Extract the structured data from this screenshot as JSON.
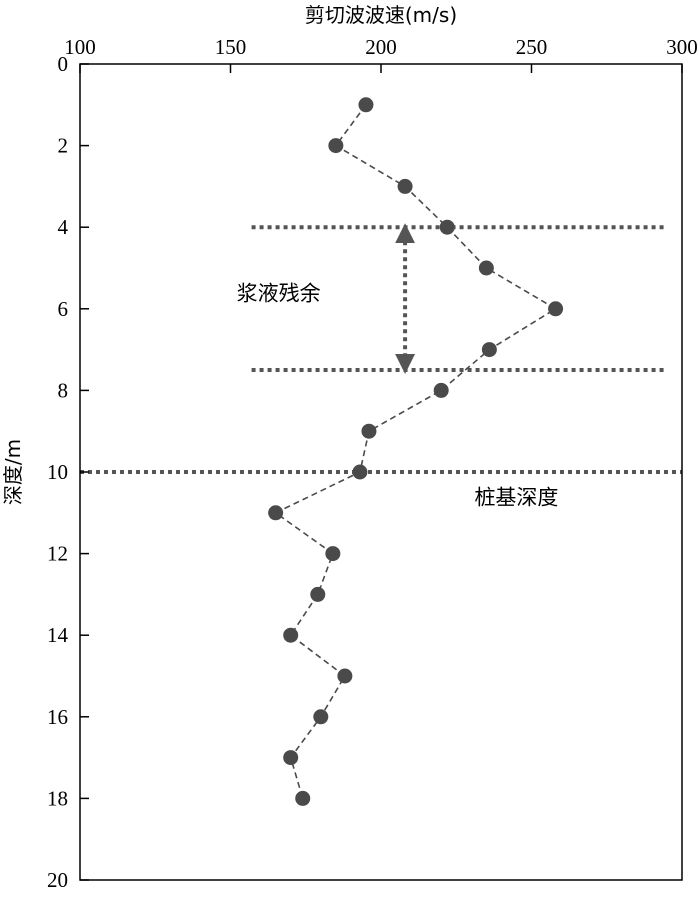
{
  "chart_data": {
    "type": "scatter",
    "title": "",
    "xlabel": "剪切波波速(m/s)",
    "ylabel": "深度/m",
    "x_axis_position": "top",
    "y_axis_inverted": true,
    "xlim": [
      100,
      300
    ],
    "ylim": [
      0,
      20
    ],
    "x_ticks": [
      100,
      150,
      200,
      250,
      300
    ],
    "y_ticks": [
      0,
      2,
      4,
      6,
      8,
      10,
      12,
      14,
      16,
      18,
      20
    ],
    "x_tick_labels": [
      "100",
      "150",
      "200",
      "250",
      "300"
    ],
    "y_tick_labels": [
      "0",
      "2",
      "4",
      "6",
      "8",
      "10",
      "12",
      "14",
      "16",
      "18",
      "20"
    ],
    "grid": false,
    "series": [
      {
        "style": "dashed line with filled circle markers",
        "color": "#4a4a4a",
        "points": [
          {
            "x": 195,
            "y": 1
          },
          {
            "x": 185,
            "y": 2
          },
          {
            "x": 208,
            "y": 3
          },
          {
            "x": 222,
            "y": 4
          },
          {
            "x": 235,
            "y": 5
          },
          {
            "x": 258,
            "y": 6
          },
          {
            "x": 236,
            "y": 7
          },
          {
            "x": 220,
            "y": 8
          },
          {
            "x": 196,
            "y": 9
          },
          {
            "x": 193,
            "y": 10
          },
          {
            "x": 165,
            "y": 11
          },
          {
            "x": 184,
            "y": 12
          },
          {
            "x": 179,
            "y": 13
          },
          {
            "x": 170,
            "y": 14
          },
          {
            "x": 188,
            "y": 15
          },
          {
            "x": 180,
            "y": 16
          },
          {
            "x": 170,
            "y": 17
          },
          {
            "x": 174,
            "y": 18
          }
        ]
      }
    ],
    "reference_lines": [
      {
        "type": "horizontal",
        "y": 4,
        "x_from": 157,
        "x_to": 295,
        "style": "dotted"
      },
      {
        "type": "horizontal",
        "y": 7.5,
        "x_from": 157,
        "x_to": 295,
        "style": "dotted"
      },
      {
        "type": "horizontal",
        "y": 10,
        "x_from": 100,
        "x_to": 300,
        "style": "dotted"
      }
    ],
    "range_arrow": {
      "x": 208,
      "y_from": 4,
      "y_to": 7.5,
      "style": "dotted double-headed"
    },
    "annotations": [
      {
        "text": "浆液残余",
        "x": 166,
        "y": 5.8
      },
      {
        "text": "桩基深度",
        "x": 245,
        "y": 10.8
      }
    ],
    "colors": {
      "line": "#4a4a4a",
      "marker": "#4a4a4a",
      "reference": "#555555"
    }
  }
}
